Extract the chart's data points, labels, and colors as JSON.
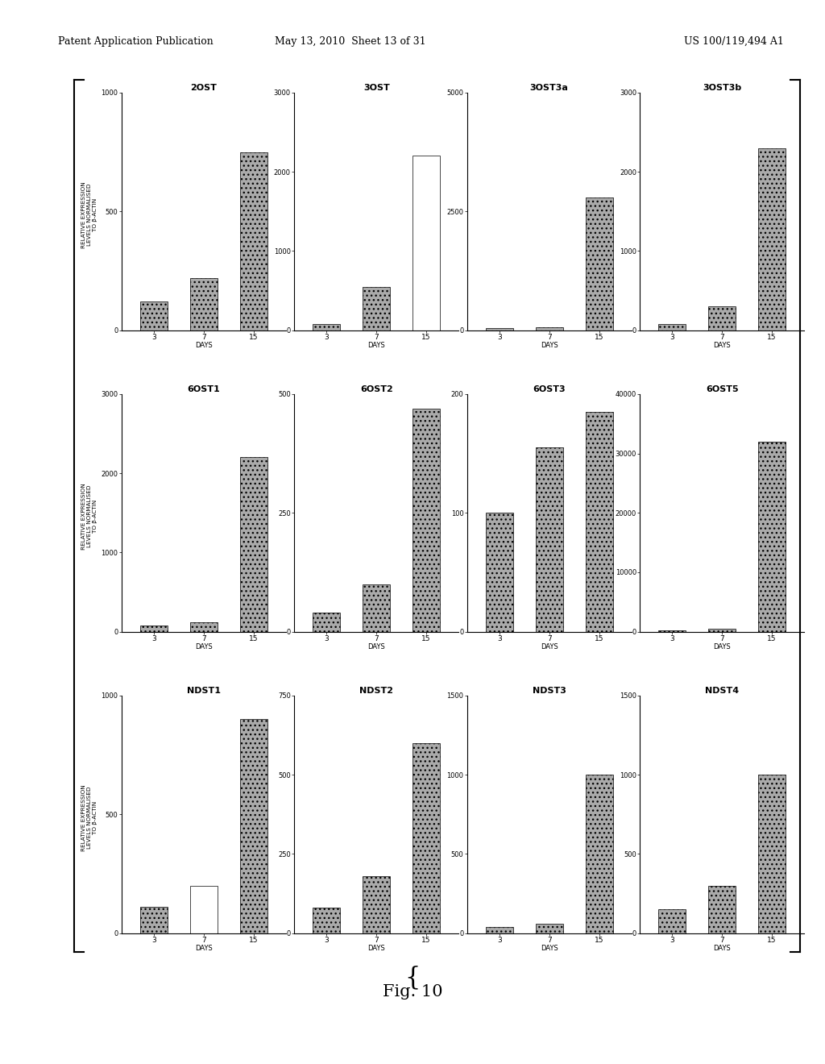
{
  "rows": [
    {
      "ylabel": "RELATIVE EXPRESSION\nLEVELS NORMALISED\nTO β-ACTIN",
      "charts": [
        {
          "title": "2OST",
          "days": [
            "3",
            "7",
            "15"
          ],
          "values": [
            120,
            220,
            750
          ],
          "ylim": [
            0,
            1000
          ],
          "yticks": [
            0,
            500,
            1000
          ],
          "bar_hatches": [
            "...",
            "...",
            "..."
          ],
          "bar_facecolors": [
            "#aaaaaa",
            "#aaaaaa",
            "#aaaaaa"
          ],
          "white_bar": null
        },
        {
          "title": "3OST",
          "days": [
            "3",
            "7",
            "15"
          ],
          "values": [
            80,
            550,
            2200
          ],
          "ylim": [
            0,
            3000
          ],
          "yticks": [
            0,
            1000,
            2000,
            3000
          ],
          "bar_hatches": [
            "...",
            "...",
            null
          ],
          "bar_facecolors": [
            "#aaaaaa",
            "#aaaaaa",
            "#ffffff"
          ],
          "white_bar": 2
        },
        {
          "title": "3OST3a",
          "days": [
            "3",
            "7",
            "15"
          ],
          "values": [
            50,
            70,
            2800
          ],
          "ylim": [
            0,
            5000
          ],
          "yticks": [
            0,
            2500,
            5000
          ],
          "bar_hatches": [
            "...",
            "...",
            "..."
          ],
          "bar_facecolors": [
            "#aaaaaa",
            "#aaaaaa",
            "#aaaaaa"
          ],
          "white_bar": null
        },
        {
          "title": "3OST3b",
          "days": [
            "3",
            "7",
            "15"
          ],
          "values": [
            80,
            300,
            2300
          ],
          "ylim": [
            0,
            3000
          ],
          "yticks": [
            0,
            1000,
            2000,
            3000
          ],
          "bar_hatches": [
            "...",
            "...",
            "..."
          ],
          "bar_facecolors": [
            "#aaaaaa",
            "#aaaaaa",
            "#aaaaaa"
          ],
          "white_bar": null
        }
      ]
    },
    {
      "ylabel": "RELATIVE EXPRESSION\nLEVELS NORMALISED\nTO β-ACTIN",
      "charts": [
        {
          "title": "6OST1",
          "days": [
            "3",
            "7",
            "15"
          ],
          "values": [
            80,
            120,
            2200
          ],
          "ylim": [
            0,
            3000
          ],
          "yticks": [
            0,
            1000,
            2000,
            3000
          ],
          "bar_hatches": [
            "...",
            "...",
            "..."
          ],
          "bar_facecolors": [
            "#aaaaaa",
            "#aaaaaa",
            "#aaaaaa"
          ],
          "white_bar": null
        },
        {
          "title": "6OST2",
          "days": [
            "3",
            "7",
            "15"
          ],
          "values": [
            40,
            100,
            470
          ],
          "ylim": [
            0,
            500
          ],
          "yticks": [
            0,
            250,
            500
          ],
          "bar_hatches": [
            "...",
            "...",
            "..."
          ],
          "bar_facecolors": [
            "#aaaaaa",
            "#aaaaaa",
            "#aaaaaa"
          ],
          "white_bar": null
        },
        {
          "title": "6OST3",
          "days": [
            "3",
            "7",
            "15"
          ],
          "values": [
            100,
            155,
            185
          ],
          "ylim": [
            0,
            200
          ],
          "yticks": [
            0,
            100,
            200
          ],
          "bar_hatches": [
            "...",
            "...",
            "..."
          ],
          "bar_facecolors": [
            "#aaaaaa",
            "#aaaaaa",
            "#aaaaaa"
          ],
          "white_bar": null
        },
        {
          "title": "6OST5",
          "days": [
            "3",
            "7",
            "15"
          ],
          "values": [
            200,
            500,
            32000
          ],
          "ylim": [
            0,
            40000
          ],
          "yticks": [
            0,
            10000,
            20000,
            30000,
            40000
          ],
          "bar_hatches": [
            "...",
            "...",
            "..."
          ],
          "bar_facecolors": [
            "#aaaaaa",
            "#aaaaaa",
            "#aaaaaa"
          ],
          "white_bar": null
        }
      ]
    },
    {
      "ylabel": "RELATIVE EXPRESSION\nLEVELS NORMALISED\nTO β-ACTIN",
      "charts": [
        {
          "title": "NDST1",
          "days": [
            "3",
            "7",
            "15"
          ],
          "values": [
            110,
            200,
            900
          ],
          "ylim": [
            0,
            1000
          ],
          "yticks": [
            0,
            500,
            1000
          ],
          "bar_hatches": [
            "...",
            null,
            "..."
          ],
          "bar_facecolors": [
            "#aaaaaa",
            "#ffffff",
            "#aaaaaa"
          ],
          "white_bar": 1
        },
        {
          "title": "NDST2",
          "days": [
            "3",
            "7",
            "15"
          ],
          "values": [
            80,
            180,
            600
          ],
          "ylim": [
            0,
            750
          ],
          "yticks": [
            0,
            250,
            500,
            750
          ],
          "bar_hatches": [
            "...",
            "...",
            "..."
          ],
          "bar_facecolors": [
            "#aaaaaa",
            "#aaaaaa",
            "#aaaaaa"
          ],
          "white_bar": null
        },
        {
          "title": "NDST3",
          "days": [
            "3",
            "7",
            "15"
          ],
          "values": [
            40,
            60,
            1000
          ],
          "ylim": [
            0,
            1500
          ],
          "yticks": [
            0,
            500,
            1000,
            1500
          ],
          "bar_hatches": [
            "...",
            "...",
            "..."
          ],
          "bar_facecolors": [
            "#aaaaaa",
            "#aaaaaa",
            "#aaaaaa"
          ],
          "white_bar": null
        },
        {
          "title": "NDST4",
          "days": [
            "3",
            "7",
            "15"
          ],
          "values": [
            150,
            300,
            1000
          ],
          "ylim": [
            0,
            1500
          ],
          "yticks": [
            0,
            500,
            1000,
            1500
          ],
          "bar_hatches": [
            "...",
            "...",
            "..."
          ],
          "bar_facecolors": [
            "#aaaaaa",
            "#aaaaaa",
            "#aaaaaa"
          ],
          "white_bar": null
        }
      ]
    }
  ],
  "fig_caption": "Fig. 10",
  "header_left": "Patent Application Publication",
  "header_mid": "May 13, 2010  Sheet 13 of 31",
  "header_right": "US 100/119,494 A1"
}
